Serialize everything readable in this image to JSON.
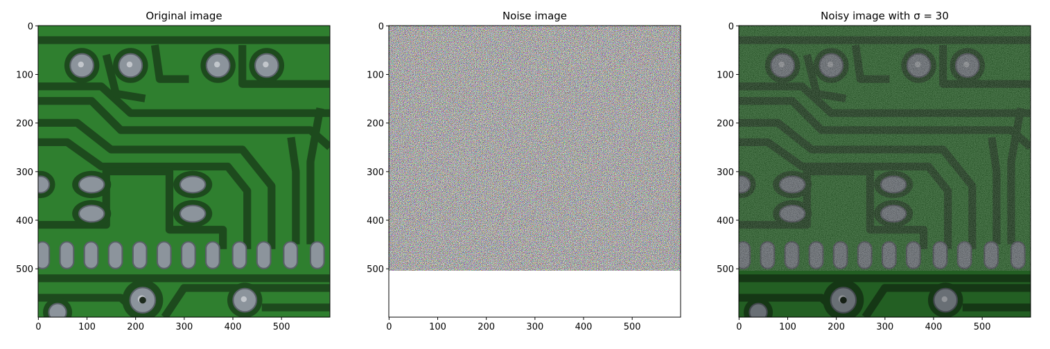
{
  "chart_data": [
    {
      "type": "image",
      "title": "Original image",
      "xlim": [
        -0.5,
        599.5
      ],
      "ylim": [
        599.5,
        -0.5
      ],
      "xticks": [
        0,
        100,
        200,
        300,
        400,
        500
      ],
      "yticks": [
        0,
        100,
        200,
        300,
        400,
        500
      ]
    },
    {
      "type": "image",
      "title": "Noise image",
      "xlim": [
        -0.5,
        599.5
      ],
      "ylim": [
        599.5,
        -0.5
      ],
      "xticks": [
        0,
        100,
        200,
        300,
        400,
        500
      ],
      "yticks": [
        0,
        100,
        200,
        300,
        400,
        500
      ]
    },
    {
      "type": "image",
      "title": "Noisy image with σ = 30",
      "xlim": [
        -0.5,
        599.5
      ],
      "ylim": [
        599.5,
        -0.5
      ],
      "xticks": [
        0,
        100,
        200,
        300,
        400,
        500
      ],
      "yticks": [
        0,
        100,
        200,
        300,
        400,
        500
      ]
    }
  ]
}
